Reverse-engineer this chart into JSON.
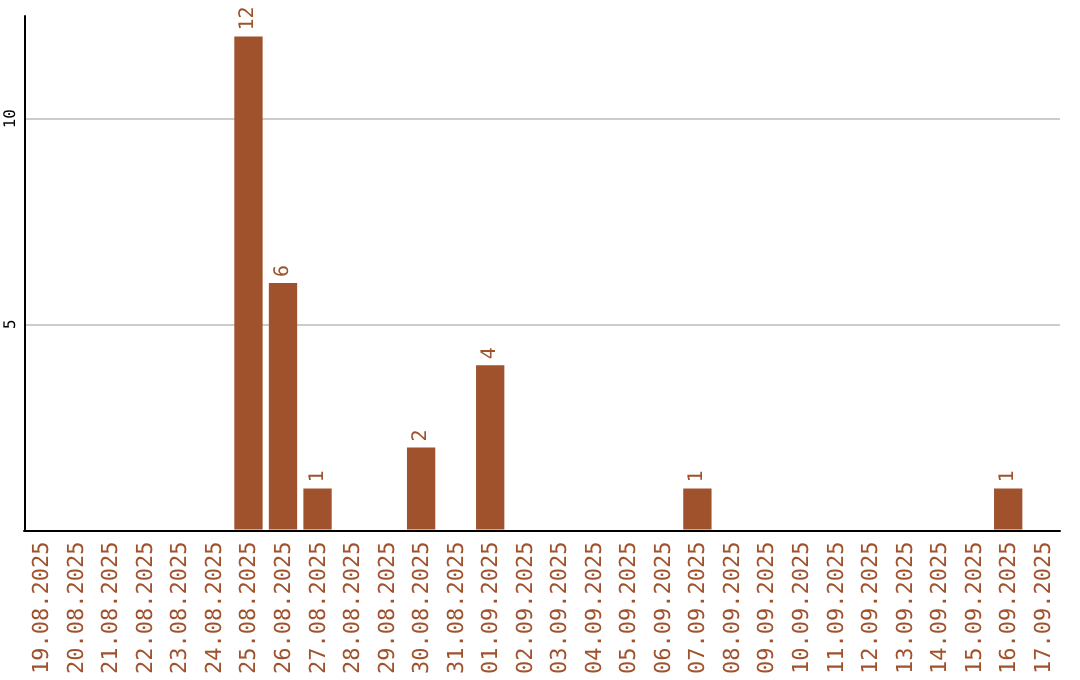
{
  "chart_data": {
    "type": "bar",
    "categories": [
      "19.08.2025",
      "20.08.2025",
      "21.08.2025",
      "22.08.2025",
      "23.08.2025",
      "24.08.2025",
      "25.08.2025",
      "26.08.2025",
      "27.08.2025",
      "28.08.2025",
      "29.08.2025",
      "30.08.2025",
      "31.08.2025",
      "01.09.2025",
      "02.09.2025",
      "03.09.2025",
      "04.09.2025",
      "05.09.2025",
      "06.09.2025",
      "07.09.2025",
      "08.09.2025",
      "09.09.2025",
      "10.09.2025",
      "11.09.2025",
      "12.09.2025",
      "13.09.2025",
      "14.09.2025",
      "15.09.2025",
      "16.09.2025",
      "17.09.2025"
    ],
    "values": [
      0,
      0,
      0,
      0,
      0,
      0,
      12,
      6,
      1,
      0,
      0,
      2,
      0,
      4,
      0,
      0,
      0,
      0,
      0,
      1,
      0,
      0,
      0,
      0,
      0,
      0,
      0,
      0,
      1,
      0
    ],
    "value_labels": [
      null,
      null,
      null,
      null,
      null,
      null,
      "12",
      "6",
      "1",
      null,
      null,
      "2",
      null,
      "4",
      null,
      null,
      null,
      null,
      null,
      "1",
      null,
      null,
      null,
      null,
      null,
      null,
      null,
      null,
      "1",
      null
    ],
    "color": "#a0522d",
    "ylim": [
      0,
      12.5
    ],
    "yticks": [
      5,
      10
    ],
    "grid": "y"
  }
}
